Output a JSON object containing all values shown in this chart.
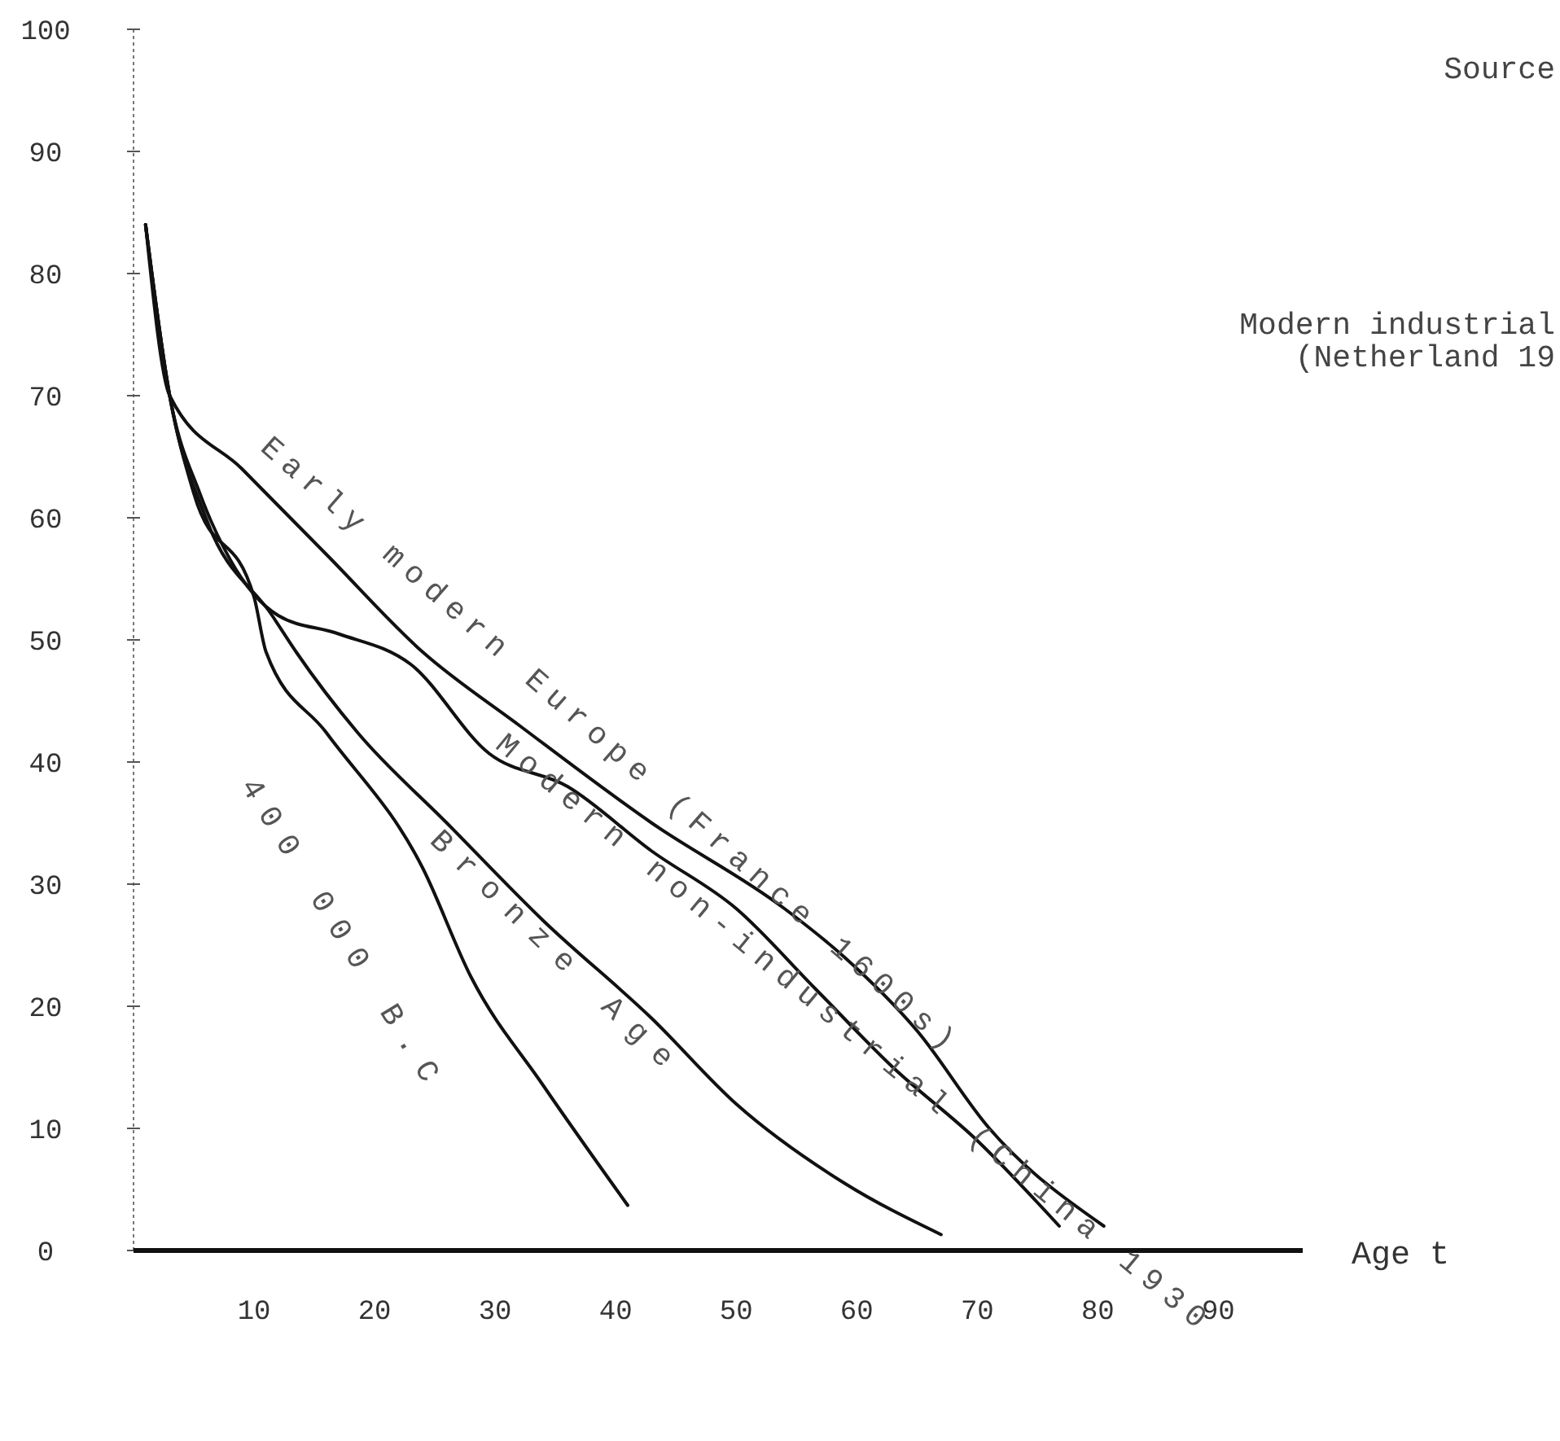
{
  "chart_data": {
    "type": "line",
    "xlabel": "Age t",
    "xlim": [
      0,
      97
    ],
    "ylim": [
      0,
      100
    ],
    "xticks": [
      10,
      20,
      30,
      40,
      50,
      60,
      70,
      80,
      90
    ],
    "yticks": [
      0,
      10,
      20,
      30,
      40,
      50,
      60,
      70,
      80,
      90,
      100
    ],
    "line_style": "solid",
    "series": [
      {
        "name": "Early modern Europe (France 1600s)",
        "color": "#111111",
        "x": [
          1,
          3,
          9,
          16,
          24,
          32,
          43,
          54,
          59,
          65,
          71,
          80.5
        ],
        "values": [
          84,
          70,
          64,
          57,
          49,
          43,
          35,
          28,
          24,
          18,
          10,
          2
        ]
      },
      {
        "name": "Modern non-industrial (China 1930",
        "color": "#111111",
        "x": [
          1,
          3,
          5.5,
          8,
          12,
          17,
          23,
          29.5,
          36,
          43,
          50,
          56.5,
          63,
          70,
          76.8
        ],
        "values": [
          84,
          70,
          62,
          56.6,
          52,
          50.5,
          48,
          40.7,
          38,
          32.7,
          28,
          21.5,
          15,
          9,
          2
        ]
      },
      {
        "name": "Bronze Age",
        "color": "#111111",
        "x": [
          1,
          3,
          6,
          11.5,
          13.5,
          18.6,
          26,
          34,
          43,
          50,
          59,
          67
        ],
        "values": [
          84,
          70,
          60,
          52,
          49,
          42.4,
          35,
          27,
          19,
          12,
          5.5,
          1.3
        ]
      },
      {
        "name": "400 000 B.C",
        "color": "#111111",
        "x": [
          1,
          3,
          5,
          10,
          11,
          16,
          24,
          28,
          34,
          41
        ],
        "values": [
          84,
          70,
          62,
          53.5,
          49,
          42.4,
          31.3,
          22.4,
          13.5,
          3.7
        ]
      }
    ],
    "annotations": [
      "Source",
      "Modern industrial",
      "(Netherland 19"
    ]
  }
}
